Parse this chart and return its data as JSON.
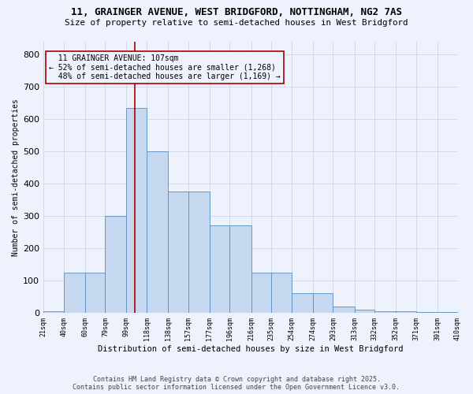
{
  "title1": "11, GRAINGER AVENUE, WEST BRIDGFORD, NOTTINGHAM, NG2 7AS",
  "title2": "Size of property relative to semi-detached houses in West Bridgford",
  "xlabel": "Distribution of semi-detached houses by size in West Bridgford",
  "ylabel": "Number of semi-detached properties",
  "property_label": "11 GRAINGER AVENUE: 107sqm",
  "pct_smaller": 52,
  "n_smaller": 1268,
  "pct_larger": 48,
  "n_larger": 1169,
  "bin_edges": [
    21,
    40,
    60,
    79,
    99,
    118,
    138,
    157,
    177,
    196,
    216,
    235,
    254,
    274,
    293,
    313,
    332,
    352,
    371,
    391,
    410
  ],
  "bin_labels": [
    "21sqm",
    "40sqm",
    "60sqm",
    "79sqm",
    "99sqm",
    "118sqm",
    "138sqm",
    "157sqm",
    "177sqm",
    "196sqm",
    "216sqm",
    "235sqm",
    "254sqm",
    "274sqm",
    "293sqm",
    "313sqm",
    "332sqm",
    "352sqm",
    "371sqm",
    "391sqm",
    "410sqm"
  ],
  "counts": [
    5,
    125,
    125,
    300,
    635,
    500,
    375,
    375,
    270,
    270,
    125,
    125,
    60,
    60,
    20,
    10,
    5,
    5,
    2,
    2
  ],
  "bar_color": "#c5d8f0",
  "bar_edge_color": "#5a8fc0",
  "vline_color": "#aa0000",
  "vline_x": 107,
  "annotation_box_edge_color": "#aa0000",
  "background_color": "#eef2fc",
  "footer_line1": "Contains HM Land Registry data © Crown copyright and database right 2025.",
  "footer_line2": "Contains public sector information licensed under the Open Government Licence v3.0.",
  "ylim_max": 840,
  "yticks": [
    0,
    100,
    200,
    300,
    400,
    500,
    600,
    700,
    800
  ]
}
